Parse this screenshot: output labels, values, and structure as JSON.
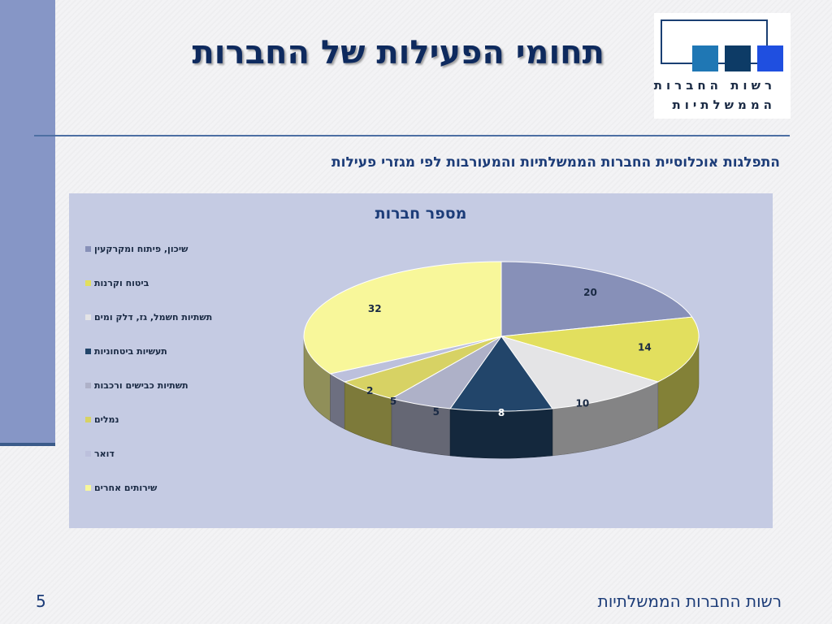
{
  "slide": {
    "title": "תחומי הפעילות של החברות",
    "subtitle": "התפלגות אוכלוסיית החברות הממשלתיות והמעורבות לפי מגזרי פעילות",
    "footer": "רשות החברות הממשלתיות",
    "page_number": "5"
  },
  "logo": {
    "line1": "רשות החברות",
    "line2": "הממשלתיות",
    "square_colors": [
      "#1f77b4",
      "#0d3b66",
      "#1f4fe0"
    ]
  },
  "colors": {
    "left_bar": "#8696c6",
    "title": "#0e2a5e",
    "chart_bg": "#c5cbe3"
  },
  "chart_data": {
    "type": "pie",
    "title": "מספר חברות",
    "legend_position": "left",
    "series": [
      {
        "name": "שיכון, פיתוח ומקרקעין",
        "value": 20,
        "color": "#8790b8"
      },
      {
        "name": "ביטוח וקרנות",
        "value": 14,
        "color": "#e2df5e"
      },
      {
        "name": "תשתיות חשמל, גז, דלק ומים",
        "value": 10,
        "color": "#e4e4e6"
      },
      {
        "name": "תעשיות ביטחוניות",
        "value": 8,
        "color": "#22456a"
      },
      {
        "name": "תשתיות כבישים ורכבות",
        "value": 5,
        "color": "#aeb1c8"
      },
      {
        "name": "נמלים",
        "value": 5,
        "color": "#d7d264"
      },
      {
        "name": "דואר",
        "value": 2,
        "color": "#bcc0dc"
      },
      {
        "name": "שירותים אחרים",
        "value": 32,
        "color": "#f8f79a"
      }
    ]
  }
}
